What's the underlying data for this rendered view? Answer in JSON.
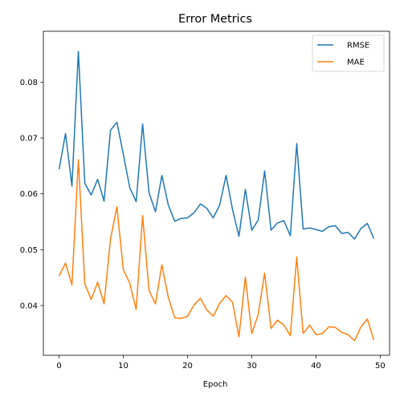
{
  "chart_data": {
    "type": "line",
    "title": "Error Metrics",
    "xlabel": "Epoch",
    "ylabel": "",
    "xlim": [
      -2.45,
      51.45
    ],
    "ylim": [
      0.0311,
      0.0891
    ],
    "xticks": [
      0,
      10,
      20,
      30,
      40,
      50
    ],
    "yticks": [
      0.04,
      0.05,
      0.06,
      0.07,
      0.08
    ],
    "ytick_labels": [
      "0.04",
      "0.05",
      "0.06",
      "0.07",
      "0.08"
    ],
    "grid": false,
    "legend": "top-right",
    "x": [
      0,
      1,
      2,
      3,
      4,
      5,
      6,
      7,
      8,
      9,
      10,
      11,
      12,
      13,
      14,
      15,
      16,
      17,
      18,
      19,
      20,
      21,
      22,
      23,
      24,
      25,
      26,
      27,
      28,
      29,
      30,
      31,
      32,
      33,
      34,
      35,
      36,
      37,
      38,
      39,
      40,
      41,
      42,
      43,
      44,
      45,
      46,
      47,
      48,
      49
    ],
    "series": [
      {
        "name": "RMSE",
        "color": "#1f77b4",
        "values": [
          0.0644,
          0.0708,
          0.0614,
          0.0855,
          0.0619,
          0.0598,
          0.0626,
          0.0587,
          0.0714,
          0.0728,
          0.0671,
          0.0611,
          0.0586,
          0.0725,
          0.0602,
          0.0568,
          0.0633,
          0.058,
          0.0551,
          0.0556,
          0.0557,
          0.0566,
          0.0582,
          0.0574,
          0.0557,
          0.058,
          0.0633,
          0.0572,
          0.0524,
          0.0608,
          0.0535,
          0.0553,
          0.0641,
          0.0535,
          0.0548,
          0.0552,
          0.0525,
          0.069,
          0.0537,
          0.0539,
          0.0536,
          0.0533,
          0.0541,
          0.0543,
          0.0529,
          0.0531,
          0.0519,
          0.0538,
          0.0547,
          0.052
        ]
      },
      {
        "name": "MAE",
        "color": "#ff7f0e",
        "values": [
          0.0453,
          0.0476,
          0.0437,
          0.0661,
          0.0439,
          0.0411,
          0.0442,
          0.0403,
          0.0519,
          0.0577,
          0.0464,
          0.044,
          0.0393,
          0.0561,
          0.0427,
          0.0403,
          0.0473,
          0.0415,
          0.0378,
          0.0377,
          0.0381,
          0.0401,
          0.0413,
          0.0392,
          0.0381,
          0.0404,
          0.0418,
          0.0406,
          0.0344,
          0.0451,
          0.035,
          0.0384,
          0.0458,
          0.0359,
          0.0374,
          0.0365,
          0.0346,
          0.0487,
          0.035,
          0.0365,
          0.0348,
          0.035,
          0.0362,
          0.0361,
          0.0352,
          0.0348,
          0.0337,
          0.0362,
          0.0376,
          0.0338
        ]
      }
    ]
  }
}
